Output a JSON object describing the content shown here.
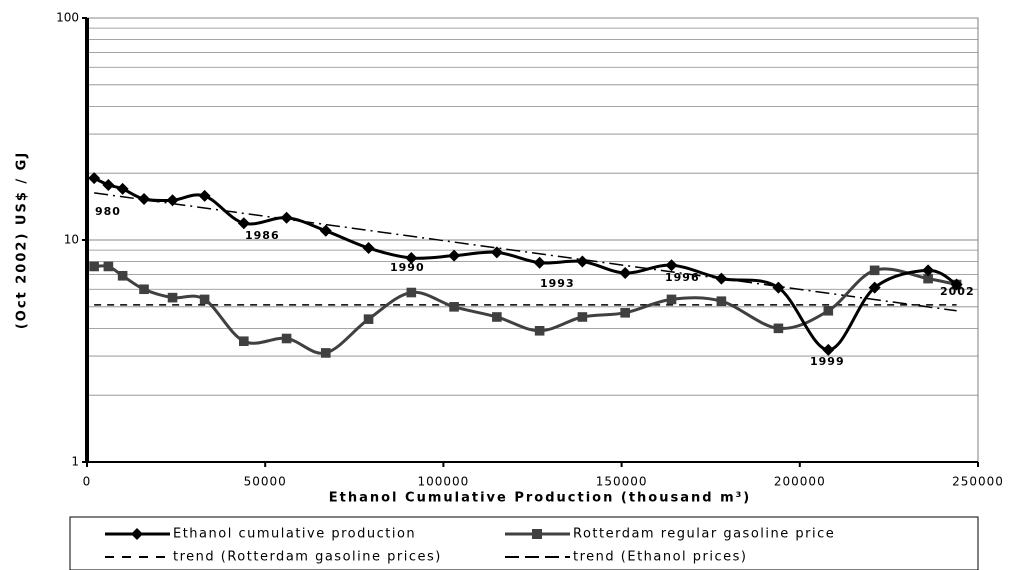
{
  "chart_data": {
    "type": "line",
    "x_label": "Ethanol Cumulative Production (thousand m³)",
    "y_label": "(Oct 2002) US$ / GJ",
    "log_y": true,
    "grid": true,
    "xlim": [
      0,
      250000
    ],
    "xticks": [
      0,
      50000,
      100000,
      150000,
      200000,
      250000
    ],
    "ylim": [
      1,
      100
    ],
    "yticks": [
      1,
      10,
      100
    ],
    "series": [
      {
        "name": "Ethanol cumulative production",
        "color": "#000000",
        "marker": "diamond",
        "line_style": "solid",
        "smooth": true,
        "x": [
          2000,
          6000,
          10000,
          16000,
          24000,
          33000,
          44000,
          56000,
          67000,
          79000,
          91000,
          103000,
          115000,
          127000,
          139000,
          151000,
          164000,
          178000,
          194000,
          208000,
          221000,
          236000,
          244000
        ],
        "values": [
          19.0,
          17.7,
          17.0,
          15.3,
          15.1,
          15.8,
          11.9,
          12.6,
          11.0,
          9.2,
          8.3,
          8.5,
          8.8,
          7.9,
          8.0,
          7.1,
          7.7,
          6.7,
          6.1,
          3.2,
          6.1,
          7.3,
          6.3
        ]
      },
      {
        "name": "Rotterdam regular gasoline price",
        "color": "#404040",
        "marker": "square",
        "line_style": "solid",
        "smooth": true,
        "x": [
          2000,
          6000,
          10000,
          16000,
          24000,
          33000,
          44000,
          56000,
          67000,
          79000,
          91000,
          103000,
          115000,
          127000,
          139000,
          151000,
          164000,
          178000,
          194000,
          208000,
          221000,
          236000,
          244000
        ],
        "values": [
          7.6,
          7.6,
          6.9,
          6.0,
          5.5,
          5.4,
          3.5,
          3.6,
          3.1,
          4.4,
          5.8,
          5.0,
          4.5,
          3.9,
          4.5,
          4.7,
          5.4,
          5.3,
          4.0,
          4.8,
          7.3,
          6.7,
          6.3
        ]
      },
      {
        "name": "trend (Rotterdam gasoline prices)",
        "color": "#000000",
        "marker": null,
        "line_style": "dashed",
        "smooth": false,
        "x": [
          2000,
          244000
        ],
        "values": [
          5.1,
          5.1
        ]
      },
      {
        "name": "trend (Ethanol prices)",
        "color": "#000000",
        "marker": null,
        "line_style": "long-dashed",
        "smooth": false,
        "x": [
          2000,
          244000
        ],
        "values": [
          16.3,
          4.8
        ]
      }
    ],
    "annotations": [
      "980",
      "1986",
      "1990",
      "1993",
      "1996",
      "1999",
      "2002"
    ]
  }
}
